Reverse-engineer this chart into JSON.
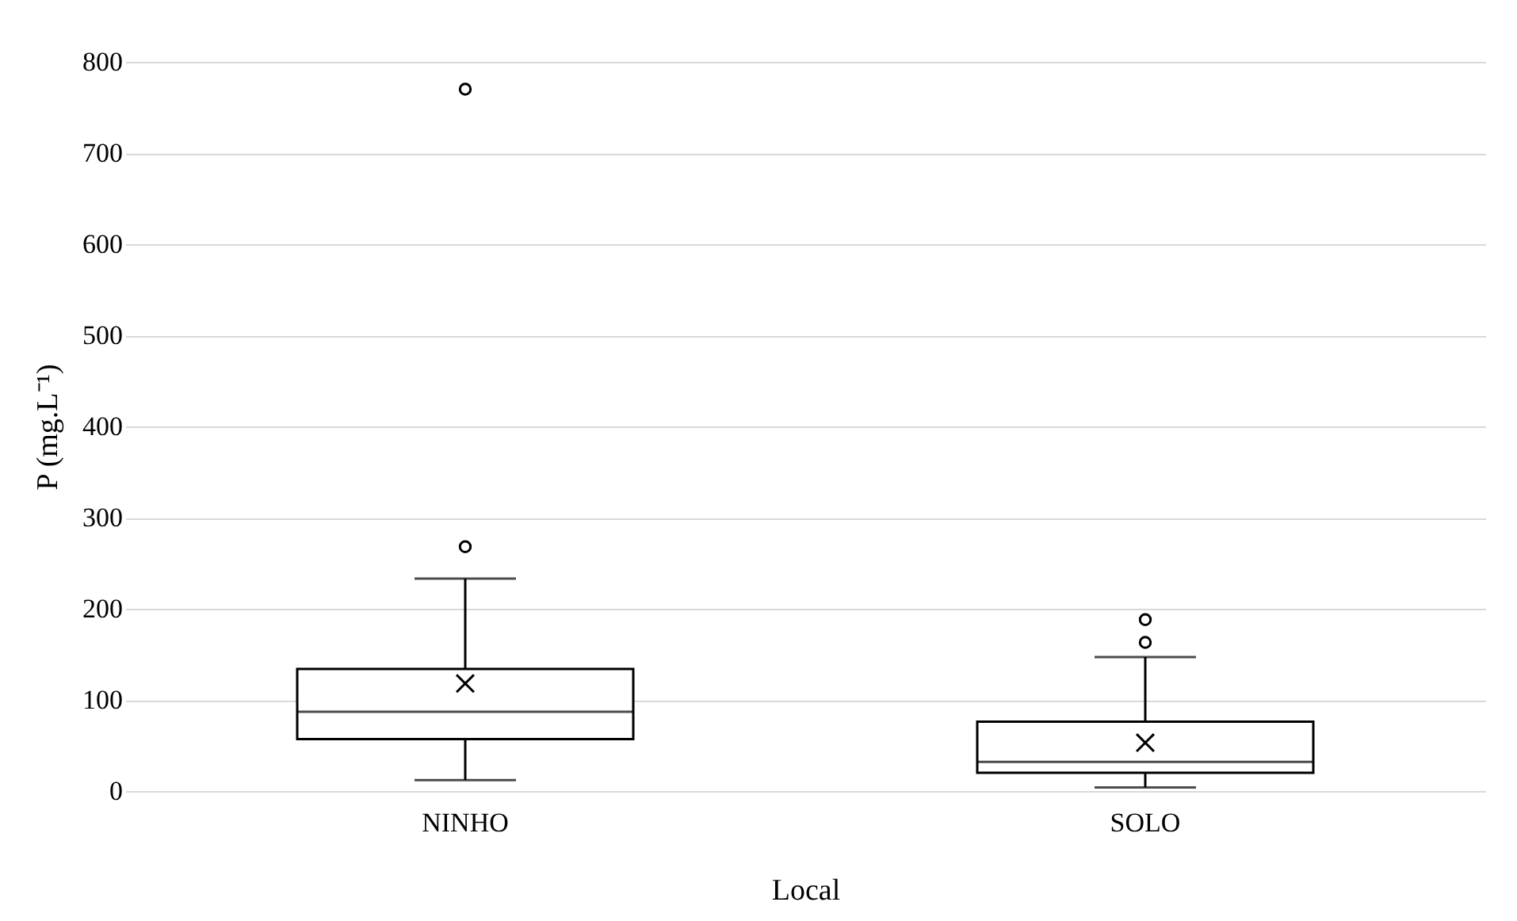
{
  "chart_data": {
    "type": "box",
    "xlabel": "Local",
    "ylabel": "P (mg.L⁻¹)",
    "categories": [
      "NINHO",
      "SOLO"
    ],
    "boxes": [
      {
        "low": 12,
        "q1": 57,
        "median": 87,
        "q3": 134,
        "high": 233,
        "mean": 118,
        "outliers": [
          268,
          770
        ]
      },
      {
        "low": 4,
        "q1": 20,
        "median": 32,
        "q3": 76,
        "high": 147,
        "mean": 53,
        "outliers": [
          163,
          188
        ]
      }
    ],
    "ylim": [
      0,
      800
    ],
    "yticks": [
      0,
      100,
      200,
      300,
      400,
      500,
      600,
      700,
      800
    ],
    "grid": "y",
    "marker": "circle"
  }
}
